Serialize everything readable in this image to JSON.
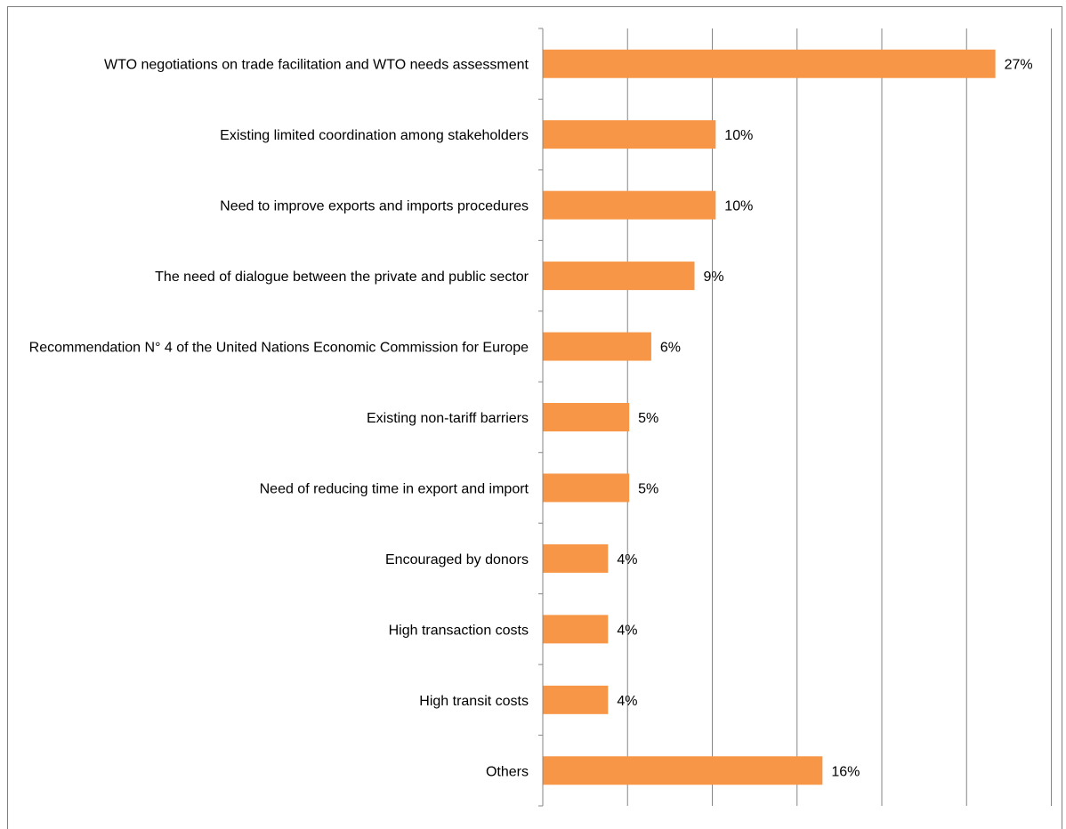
{
  "chart_data": {
    "type": "bar",
    "orientation": "horizontal",
    "title": "",
    "xlabel": "",
    "ylabel": "",
    "categories": [
      "WTO negotiations on trade facilitation and WTO needs assessment",
      "Existing limited coordination among stakeholders",
      "Need to improve exports and imports procedures",
      "The need of dialogue between the private and public sector",
      "Recommendation N° 4 of the United Nations Economic Commission for Europe",
      "Existing non-tariff barriers",
      "Need of reducing time in export and import",
      "Encouraged by donors",
      "High transaction costs",
      "High transit costs",
      "Others"
    ],
    "values": [
      26.7,
      10.2,
      10.2,
      8.95,
      6.4,
      5.1,
      5.1,
      3.85,
      3.85,
      3.85,
      16.5
    ],
    "data_labels": [
      "27%",
      "10%",
      "10%",
      "9%",
      "6%",
      "5%",
      "5%",
      "4%",
      "4%",
      "4%",
      "16%"
    ],
    "xlim": [
      0,
      30
    ],
    "x_gridline_step": 5,
    "x_tick_labels_shown": false,
    "grid": "vertical",
    "legend": "none",
    "colors": {
      "bar": "#f79646",
      "grid": "#868686",
      "axis": "#868686",
      "text": "#000000"
    }
  }
}
